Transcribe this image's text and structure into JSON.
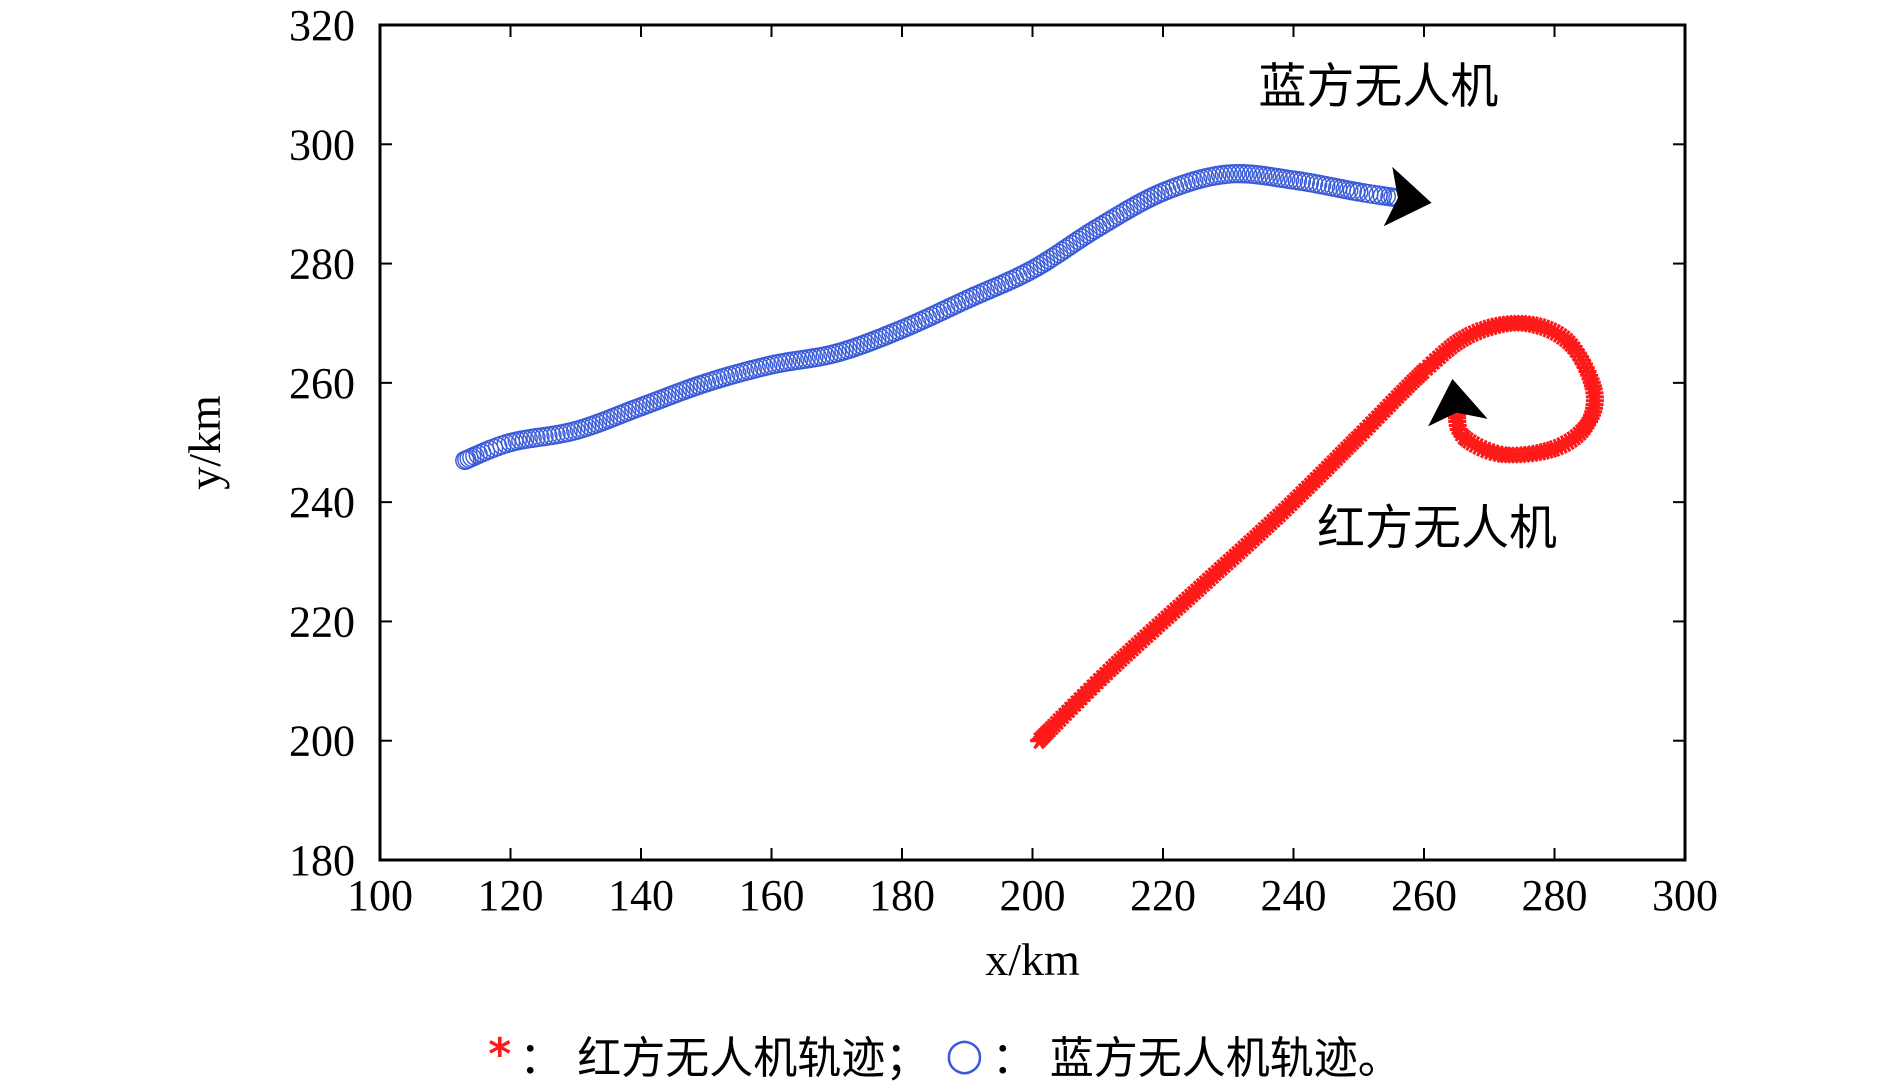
{
  "chart_data": {
    "type": "line",
    "xlabel": "x/km",
    "ylabel": "y/km",
    "xlim": [
      100,
      300
    ],
    "ylim": [
      180,
      320
    ],
    "xticks": [
      100,
      120,
      140,
      160,
      180,
      200,
      220,
      240,
      260,
      280,
      300
    ],
    "yticks": [
      180,
      200,
      220,
      240,
      260,
      280,
      300,
      320
    ],
    "series": [
      {
        "name": "红方无人机",
        "marker": "asterisk",
        "color": "#ff1a1a",
        "x": [
          201,
          212,
          225,
          238,
          250,
          260,
          267,
          275,
          282,
          286,
          285,
          280,
          272,
          266,
          265
        ],
        "y": [
          200,
          212,
          225,
          238,
          251,
          262,
          268,
          270,
          267,
          259,
          253,
          249,
          248,
          251,
          255
        ]
      },
      {
        "name": "蓝方无人机",
        "marker": "circle",
        "color": "#3a5bd9",
        "x": [
          113,
          120,
          130,
          140,
          150,
          160,
          170,
          180,
          190,
          200,
          210,
          220,
          230,
          240,
          250,
          256
        ],
        "y": [
          247,
          250,
          252,
          256,
          260,
          263,
          265,
          269,
          274,
          279,
          286,
          292,
          295,
          294,
          292,
          291
        ]
      }
    ],
    "annotations": [
      {
        "text": "蓝方无人机",
        "x": 253,
        "y": 307
      },
      {
        "text": "红方无人机",
        "x": 262,
        "y": 233
      }
    ],
    "legend": {
      "position": "bottom",
      "items": [
        {
          "symbol": "*",
          "label": "： 红方无人机轨迹；"
        },
        {
          "symbol": "○",
          "label": "： 蓝方无人机轨迹。"
        }
      ]
    },
    "grid": false
  }
}
